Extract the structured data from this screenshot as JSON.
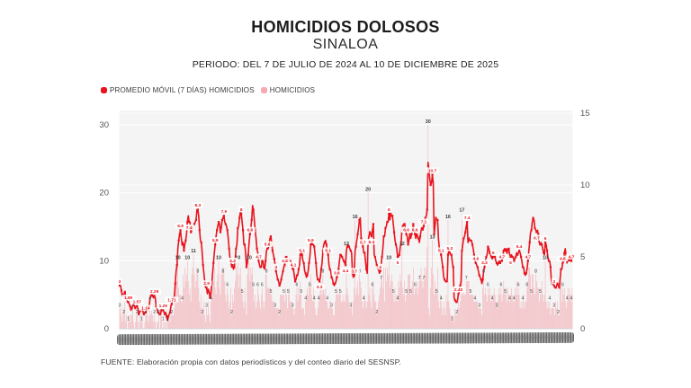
{
  "header": {
    "title": "HOMICIDIOS DOLOSOS",
    "subtitle": "SINALOA",
    "period": "PERIODO: DEL 7 DE JULIO DE 2024 AL 10 DE DICIEMBRE DE 2025"
  },
  "legend": {
    "items": [
      {
        "label": "PROMEDIO MÓVIL (7 DÍAS) HOMICIDIOS",
        "color": "#e8141e",
        "swatch": "red-rounded-square"
      },
      {
        "label": "HOMICIDIOS",
        "color": "#f5a9b0",
        "swatch": "pink-rounded-square"
      }
    ],
    "position": "top-left"
  },
  "source": "FUENTE: Elaboración propia con datos periodísticos y del conteo diario del SESNSP.",
  "colors": {
    "bar_fill": "#f3aab2",
    "line": "#e8141e",
    "ma_label_text": "#e8141e",
    "ma_label_box": "#ffffff",
    "bar_label_text": "#3c3c3c",
    "plot_background": "#f4f4f4",
    "gridline": "#ffffff",
    "axis_text": "#555555",
    "x_axis_band": "#8a8a8a"
  },
  "chart_data": {
    "type": "bar",
    "overlay": "line",
    "title": "HOMICIDIOS DOLOSOS",
    "subtitle": "SINALOA",
    "xlabel": "",
    "ylabel": "",
    "x_range": {
      "start": "2024-07-07",
      "end": "2025-12-10",
      "unit": "day",
      "points": 522
    },
    "x_tick_labels_legible": false,
    "grid": true,
    "legend_position": "top-left",
    "left_axis": {
      "series": "HOMICIDIOS (barras diarias)",
      "min": 0,
      "max": 30,
      "ticks": [
        0,
        10,
        20,
        30
      ]
    },
    "right_axis": {
      "series": "PROMEDIO MÓVIL (7 DÍAS)",
      "min": 0,
      "max": 15,
      "ticks": [
        0,
        5,
        10,
        15
      ]
    },
    "peak_daily_values_labeled": [
      30,
      20,
      17,
      16,
      12,
      10
    ],
    "ma_peak_labeled": 11.6,
    "series": [
      {
        "name": "HOMICIDIOS",
        "type": "bar",
        "axis": "left",
        "color": "#f3aab2",
        "values": [
          3,
          3,
          2,
          1,
          3,
          2,
          4,
          1,
          2,
          0,
          1,
          2,
          1,
          2,
          2,
          3,
          1,
          0,
          1,
          2,
          2,
          1,
          0,
          2,
          1,
          1,
          3,
          0,
          0,
          1,
          2,
          3,
          2,
          1,
          2,
          4,
          2,
          3,
          2,
          1,
          2,
          1,
          0,
          1,
          1,
          2,
          0,
          2,
          3,
          0,
          1,
          0,
          1,
          1,
          0,
          1,
          2,
          2,
          1,
          4,
          2,
          2,
          2,
          3,
          8,
          7,
          7,
          10,
          6,
          5,
          5,
          4,
          4,
          8,
          6,
          9,
          7,
          8,
          10,
          7,
          5,
          6,
          4,
          8,
          9,
          11,
          8,
          6,
          7,
          9,
          8,
          6,
          4,
          3,
          5,
          2,
          3,
          4,
          2,
          1,
          3,
          2,
          4,
          2,
          1,
          4,
          6,
          8,
          7,
          9,
          6,
          5,
          7,
          8,
          10,
          6,
          5,
          8,
          9,
          8,
          9,
          7,
          5,
          4,
          6,
          5,
          3,
          4,
          6,
          2,
          5,
          4,
          6,
          7,
          9,
          8,
          10,
          6,
          8,
          9,
          6,
          5,
          4,
          3,
          6,
          4,
          2,
          8,
          9,
          10,
          7,
          9,
          8,
          9,
          6,
          4,
          5,
          3,
          4,
          6,
          5,
          4,
          3,
          5,
          6,
          4,
          3,
          4,
          8,
          8,
          6,
          6,
          6,
          6,
          5,
          5,
          4,
          4,
          4,
          3,
          3,
          3,
          3,
          3,
          2,
          5,
          5,
          5,
          5,
          5,
          4,
          6,
          5,
          3,
          5,
          6,
          4,
          4,
          4,
          3,
          3,
          2,
          3,
          5,
          6,
          4,
          6,
          5,
          7,
          5,
          3,
          3,
          3,
          2,
          4,
          5,
          6,
          5,
          7,
          6,
          8,
          5,
          4,
          6,
          4,
          3,
          2,
          2,
          3,
          4,
          5,
          6,
          7,
          5,
          8,
          6,
          5,
          6,
          4,
          4,
          3,
          3,
          4,
          4,
          3,
          3,
          2,
          2,
          4,
          5,
          6,
          5,
          5,
          6,
          5,
          4,
          4,
          5,
          4,
          4,
          5,
          12,
          6,
          5,
          4,
          3,
          3,
          4,
          2,
          4,
          6,
          16,
          5,
          6,
          7,
          5,
          8,
          7,
          6,
          4,
          3,
          4,
          5,
          4,
          3,
          4,
          20,
          5,
          6,
          4,
          3,
          6,
          7,
          5,
          4,
          4,
          2,
          3,
          4,
          5,
          6,
          7,
          8,
          6,
          9,
          4,
          9,
          7,
          9,
          8,
          10,
          6,
          7,
          8,
          7,
          5,
          4,
          6,
          4,
          5,
          4,
          7,
          6,
          8,
          7,
          12,
          6,
          5,
          7,
          4,
          5,
          6,
          8,
          8,
          8,
          5,
          6,
          7,
          9,
          5,
          6,
          6,
          7,
          5,
          6,
          7,
          8,
          9,
          7,
          6,
          7,
          9,
          8,
          9,
          12,
          30,
          3,
          2,
          6,
          9,
          13,
          8,
          5,
          7,
          6,
          5,
          9,
          4,
          3,
          5,
          4,
          3,
          2,
          4,
          3,
          2,
          5,
          4,
          16,
          4,
          3,
          2,
          2,
          1,
          2,
          1,
          3,
          2,
          2,
          3,
          4,
          3,
          4,
          5,
          17,
          5,
          6,
          5,
          5,
          7,
          7,
          7,
          7,
          5,
          5,
          5,
          5,
          5,
          4,
          4,
          4,
          4,
          4,
          3,
          3,
          3,
          3,
          2,
          6,
          8,
          5,
          6,
          5,
          4,
          6,
          5,
          6,
          4,
          5,
          4,
          5,
          6,
          5,
          4,
          3,
          4,
          5,
          6,
          5,
          6,
          4,
          5,
          7,
          6,
          5,
          6,
          4,
          6,
          5,
          4,
          5,
          6,
          5,
          4,
          4,
          6,
          5,
          7,
          5,
          6,
          5,
          3,
          4,
          3,
          4,
          5,
          3,
          4,
          4,
          6,
          7,
          9,
          9,
          8,
          5,
          8,
          8,
          6,
          5,
          8,
          7,
          6,
          6,
          4,
          5,
          6,
          7,
          5,
          4,
          5,
          10,
          4,
          3,
          4,
          3,
          4,
          2,
          3,
          3,
          3,
          3,
          2,
          4,
          3,
          4,
          2,
          2,
          7,
          7,
          4,
          6,
          5,
          6,
          4,
          3,
          4,
          6,
          5,
          6,
          5,
          4,
          6
        ]
      },
      {
        "name": "PROMEDIO MÓVIL (7 DÍAS) HOMICIDIOS",
        "type": "line",
        "axis": "right",
        "color": "#e8141e",
        "derivation": "7-day trailing moving average of the HOMICIDIOS daily values"
      }
    ]
  }
}
